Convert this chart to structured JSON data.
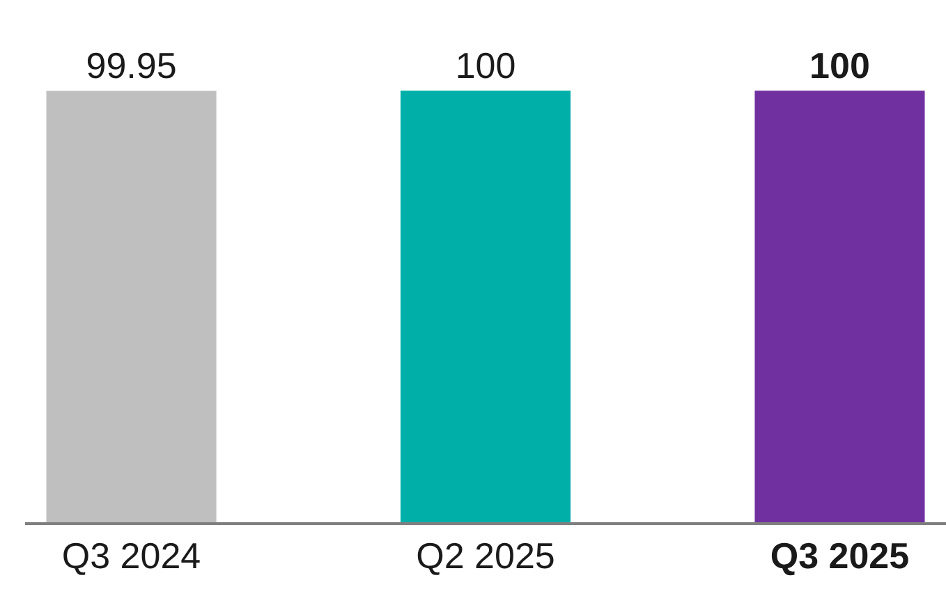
{
  "chart_data": {
    "type": "bar",
    "categories": [
      "Q3 2024",
      "Q2 2025",
      "Q3 2025"
    ],
    "values": [
      99.95,
      100,
      100
    ],
    "colors": [
      "#bfbfbf",
      "#00b0a8",
      "#7030a0"
    ],
    "data_labels": true
  }
}
